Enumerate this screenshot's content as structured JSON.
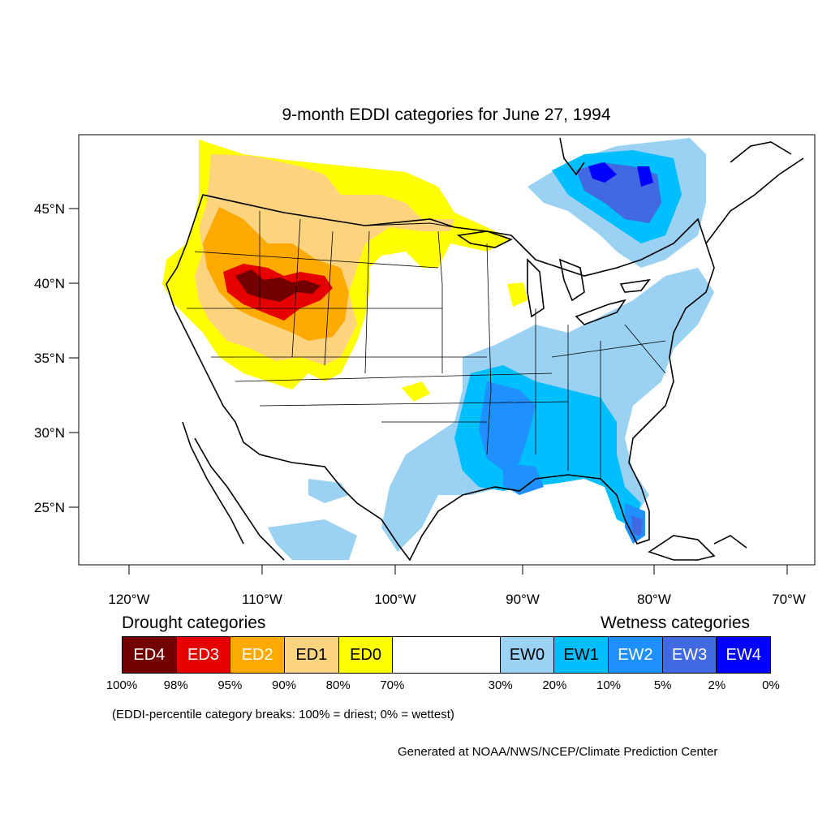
{
  "title": "9-month EDDI categories for June 27, 1994",
  "lat_labels": [
    "45°N",
    "40°N",
    "35°N",
    "30°N",
    "25°N"
  ],
  "lon_labels": [
    "120°W",
    "110°W",
    "100°W",
    "90°W",
    "80°W",
    "70°W"
  ],
  "legend": {
    "drought_heading": "Drought categories",
    "wetness_heading": "Wetness categories",
    "categories": [
      {
        "label": "ED4",
        "color": "#730000",
        "text_color": "#ffffff"
      },
      {
        "label": "ED3",
        "color": "#e60000",
        "text_color": "#ffffff"
      },
      {
        "label": "ED2",
        "color": "#ffaa00",
        "text_color": "#ffffff"
      },
      {
        "label": "ED1",
        "color": "#fcd37f",
        "text_color": "#000000"
      },
      {
        "label": "ED0",
        "color": "#ffff00",
        "text_color": "#000000"
      },
      {
        "label": "",
        "color": "#ffffff",
        "text_color": "#000000"
      },
      {
        "label": "EW0",
        "color": "#9bd1f2",
        "text_color": "#000000"
      },
      {
        "label": "EW1",
        "color": "#00bfff",
        "text_color": "#000000"
      },
      {
        "label": "EW2",
        "color": "#1e90ff",
        "text_color": "#ffffff"
      },
      {
        "label": "EW3",
        "color": "#4169e1",
        "text_color": "#ffffff"
      },
      {
        "label": "EW4",
        "color": "#0000ff",
        "text_color": "#ffffff"
      }
    ],
    "percentiles": [
      "100%",
      "98%",
      "95%",
      "90%",
      "80%",
      "70%",
      "30%",
      "20%",
      "10%",
      "5%",
      "2%",
      "0%"
    ]
  },
  "note": "(EDDI-percentile category breaks: 100% = driest; 0% = wettest)",
  "credit": "Generated at NOAA/NWS/NCEP/Climate Prediction Center"
}
